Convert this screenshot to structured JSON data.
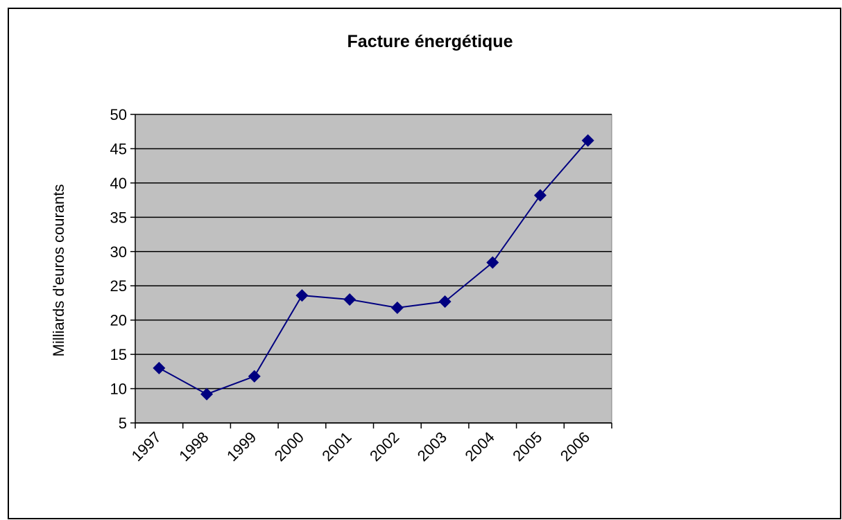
{
  "chart_data": {
    "type": "line",
    "title": "Facture énergétique",
    "y_label": "Milliards d'euros courants",
    "categories": [
      "1997",
      "1998",
      "1999",
      "2000",
      "2001",
      "2002",
      "2003",
      "2004",
      "2005",
      "2006"
    ],
    "series": [
      {
        "name": "Facture énergétique",
        "color": "#000080",
        "values": [
          13,
          9.2,
          11.8,
          23.6,
          23,
          21.8,
          22.7,
          28.4,
          38.2,
          46.2
        ]
      }
    ],
    "ylim": [
      5,
      50
    ],
    "yticks": [
      5,
      10,
      15,
      20,
      25,
      30,
      35,
      40,
      45,
      50
    ],
    "grid": true,
    "plot_background": "#c0c0c0"
  }
}
